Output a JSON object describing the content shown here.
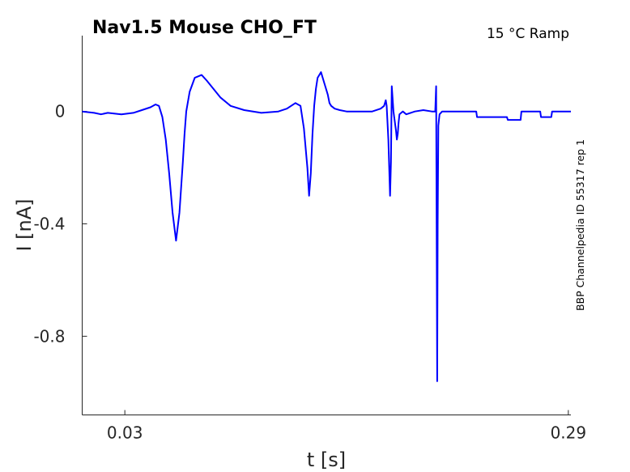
{
  "chart_data": {
    "type": "line",
    "title": "Nav1.5  Mouse  CHO_FT",
    "condition": "15 °C  Ramp",
    "side_label": "BBP Channelpedia ID 55317 rep 1",
    "xlabel": "t [s]",
    "ylabel": "I [nA]",
    "xlim": [
      0.005,
      0.2915
    ],
    "ylim": [
      -1.08,
      0.27
    ],
    "x_ticks": [
      0.03,
      0.29
    ],
    "x_tick_labels": [
      "0.03",
      "0.29"
    ],
    "y_ticks": [
      0,
      -0.4,
      -0.8
    ],
    "y_tick_labels": [
      "0",
      "-0.4",
      "-0.8"
    ],
    "grid": false,
    "series": [
      {
        "color": "#0000ff",
        "x": [
          0.005,
          0.012,
          0.016,
          0.02,
          0.028,
          0.035,
          0.04,
          0.045,
          0.048,
          0.05,
          0.052,
          0.054,
          0.056,
          0.058,
          0.06,
          0.062,
          0.064,
          0.065,
          0.066,
          0.068,
          0.071,
          0.075,
          0.078,
          0.082,
          0.086,
          0.092,
          0.1,
          0.11,
          0.12,
          0.125,
          0.13,
          0.133,
          0.135,
          0.137,
          0.138,
          0.139,
          0.14,
          0.141,
          0.142,
          0.143,
          0.145,
          0.147,
          0.149,
          0.15,
          0.151,
          0.153,
          0.156,
          0.16,
          0.165,
          0.17,
          0.175,
          0.18,
          0.182,
          0.183,
          0.1835,
          0.1845,
          0.1855,
          0.186,
          0.1865,
          0.1875,
          0.189,
          0.1895,
          0.19,
          0.1905,
          0.191,
          0.192,
          0.193,
          0.195,
          0.2,
          0.205,
          0.21,
          0.212,
          0.2125,
          0.2128,
          0.2131,
          0.2134,
          0.2138,
          0.2145,
          0.216,
          0.22,
          0.225,
          0.23,
          0.236,
          0.2365,
          0.24,
          0.245,
          0.25,
          0.254,
          0.2545,
          0.256,
          0.262,
          0.2625,
          0.265,
          0.27,
          0.2735,
          0.274,
          0.28,
          0.2805,
          0.284,
          0.285,
          0.2915
        ],
        "y": [
          0.0,
          -0.005,
          -0.01,
          -0.005,
          -0.01,
          -0.005,
          0.005,
          0.015,
          0.025,
          0.02,
          -0.02,
          -0.1,
          -0.22,
          -0.36,
          -0.46,
          -0.36,
          -0.18,
          -0.08,
          0.0,
          0.07,
          0.12,
          0.13,
          0.11,
          0.08,
          0.05,
          0.02,
          0.005,
          -0.005,
          0.0,
          0.01,
          0.03,
          0.02,
          -0.06,
          -0.2,
          -0.3,
          -0.22,
          -0.08,
          0.02,
          0.08,
          0.12,
          0.14,
          0.1,
          0.06,
          0.03,
          0.02,
          0.01,
          0.005,
          0.0,
          0.0,
          0.0,
          0.0,
          0.01,
          0.02,
          0.04,
          0.02,
          -0.1,
          -0.3,
          -0.18,
          0.09,
          0.0,
          -0.07,
          -0.1,
          -0.08,
          -0.04,
          -0.01,
          -0.005,
          0.0,
          -0.01,
          0.0,
          0.005,
          0.0,
          0.0,
          0.09,
          -0.4,
          -0.96,
          -0.4,
          -0.05,
          -0.01,
          0.0,
          0.0,
          0.0,
          0.0,
          0.0,
          -0.02,
          -0.02,
          -0.02,
          -0.02,
          -0.02,
          -0.03,
          -0.03,
          -0.03,
          0.0,
          0.0,
          0.0,
          0.0,
          -0.02,
          -0.02,
          0.0,
          0.0,
          0.0,
          0.0
        ]
      }
    ]
  }
}
